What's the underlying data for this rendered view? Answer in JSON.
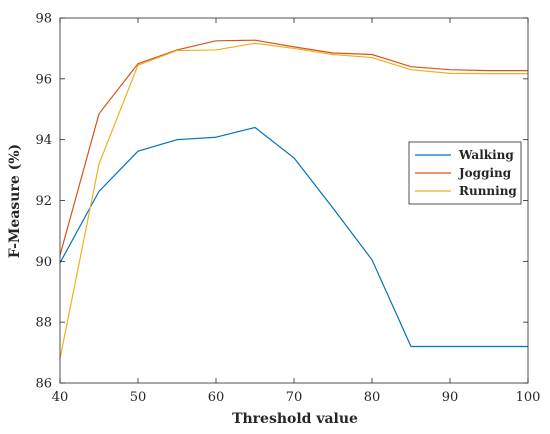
{
  "chart_data": {
    "type": "line",
    "title": "",
    "xlabel": "Threshold value",
    "ylabel": "F-Measure (%)",
    "xlim": [
      40,
      100
    ],
    "ylim": [
      86,
      98
    ],
    "xticks": [
      40,
      50,
      60,
      70,
      80,
      90,
      100
    ],
    "yticks": [
      86,
      88,
      90,
      92,
      94,
      96,
      98
    ],
    "grid": false,
    "legend_position": "right",
    "x": [
      40,
      45,
      50,
      55,
      60,
      65,
      70,
      75,
      80,
      85,
      90,
      95,
      100
    ],
    "series": [
      {
        "name": "Walking",
        "color": "#0072BD",
        "values": [
          89.95,
          92.3,
          93.62,
          94.0,
          94.08,
          94.4,
          93.4,
          91.75,
          90.05,
          87.2,
          87.2,
          87.2,
          87.2
        ]
      },
      {
        "name": "Jogging",
        "color": "#D95319",
        "values": [
          90.2,
          94.85,
          96.5,
          96.95,
          97.25,
          97.27,
          97.05,
          96.85,
          96.8,
          96.4,
          96.3,
          96.27,
          96.27
        ]
      },
      {
        "name": "Running",
        "color": "#EDB120",
        "values": [
          86.8,
          93.2,
          96.45,
          96.93,
          96.95,
          97.17,
          97.0,
          96.8,
          96.7,
          96.3,
          96.18,
          96.17,
          96.17
        ]
      }
    ]
  }
}
